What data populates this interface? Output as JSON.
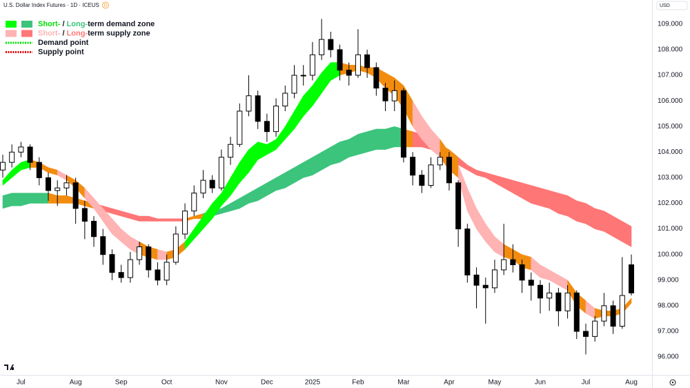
{
  "header": {
    "title": "U.S. Dollar Index Futures · 1D · ICEUS",
    "badge": "D",
    "currency": "USD"
  },
  "chart_data": {
    "type": "candlestick",
    "categories": [
      null,
      null,
      "Jul",
      null,
      null,
      null,
      null,
      null,
      "Aug",
      null,
      null,
      null,
      null,
      "Sep",
      null,
      null,
      null,
      null,
      "Oct",
      null,
      null,
      null,
      null,
      null,
      "Nov",
      null,
      null,
      null,
      null,
      "Dec",
      null,
      null,
      null,
      null,
      "2025",
      null,
      null,
      null,
      null,
      "Feb",
      null,
      null,
      null,
      null,
      "Mar",
      null,
      null,
      null,
      null,
      "Apr",
      null,
      null,
      null,
      null,
      "May",
      null,
      null,
      null,
      null,
      "Jun",
      null,
      null,
      null,
      null,
      "Jul",
      null,
      null,
      null,
      null,
      "Aug"
    ],
    "open": [
      103.3,
      103.6,
      104.0,
      104.2,
      103.6,
      103.0,
      102.5,
      102.6,
      102.8,
      101.8,
      101.3,
      100.7,
      100.0,
      99.3,
      99.1,
      99.8,
      100.3,
      99.4,
      99.0,
      99.7,
      100.8,
      101.7,
      102.4,
      102.9,
      102.6,
      103.8,
      104.3,
      105.6,
      106.2,
      105.2,
      104.8,
      105.8,
      106.3,
      107.0,
      107.0,
      107.8,
      108.4,
      108.0,
      107.2,
      107.0,
      107.8,
      107.3,
      106.5,
      106.0,
      106.4,
      103.8,
      103.1,
      102.7,
      103.5,
      103.8,
      102.8,
      101.0,
      99.2,
      98.8,
      98.7,
      99.4,
      99.8,
      99.6,
      99.0,
      98.8,
      98.3,
      98.5,
      97.8,
      98.5,
      97.0,
      96.8,
      97.4,
      98.0,
      97.2,
      99.6
    ],
    "high": [
      103.9,
      104.3,
      104.4,
      104.3,
      103.8,
      103.2,
      102.9,
      103.1,
      103.0,
      102.1,
      101.5,
      101.0,
      100.2,
      99.6,
      100.1,
      100.5,
      100.4,
      99.7,
      100.0,
      101.1,
      102.0,
      102.7,
      103.3,
      103.1,
      104.1,
      104.6,
      105.9,
      107.0,
      106.4,
      105.5,
      106.1,
      106.6,
      107.4,
      107.4,
      108.3,
      109.2,
      108.7,
      108.2,
      107.5,
      108.8,
      108.0,
      107.5,
      106.7,
      106.8,
      106.5,
      104.0,
      103.3,
      103.8,
      104.0,
      104.0,
      102.9,
      101.2,
      99.5,
      99.1,
      99.8,
      101.2,
      100.4,
      99.8,
      99.3,
      99.0,
      98.9,
      98.7,
      98.8,
      98.6,
      97.3,
      97.6,
      98.5,
      98.2,
      99.9,
      100.0
    ],
    "low": [
      103.0,
      103.4,
      103.8,
      103.3,
      102.7,
      102.1,
      101.9,
      102.3,
      101.2,
      100.6,
      100.3,
      99.6,
      99.0,
      98.9,
      98.9,
      99.6,
      99.1,
      98.8,
      98.8,
      99.6,
      100.6,
      101.5,
      102.2,
      102.4,
      102.5,
      103.5,
      104.2,
      105.4,
      104.9,
      104.4,
      104.6,
      105.6,
      106.1,
      106.6,
      106.8,
      107.6,
      107.7,
      106.8,
      106.6,
      106.9,
      106.9,
      106.2,
      105.6,
      105.6,
      103.6,
      102.7,
      102.4,
      102.6,
      103.3,
      102.5,
      100.3,
      98.9,
      97.9,
      97.3,
      98.5,
      99.2,
      99.3,
      98.5,
      98.2,
      97.7,
      97.8,
      97.2,
      97.5,
      96.7,
      96.1,
      96.6,
      97.2,
      96.9,
      97.1,
      98.4
    ],
    "close": [
      103.6,
      104.0,
      104.2,
      103.6,
      103.0,
      102.5,
      102.6,
      102.8,
      101.8,
      101.3,
      100.7,
      100.0,
      99.3,
      99.1,
      99.8,
      100.3,
      99.4,
      99.0,
      99.7,
      100.8,
      101.7,
      102.4,
      102.9,
      102.6,
      103.8,
      104.3,
      105.6,
      106.2,
      105.2,
      104.8,
      105.8,
      106.3,
      107.0,
      107.0,
      107.8,
      108.4,
      108.0,
      107.2,
      107.0,
      107.8,
      107.3,
      106.5,
      106.0,
      106.4,
      103.8,
      103.1,
      102.7,
      103.5,
      103.8,
      102.8,
      101.0,
      99.2,
      98.8,
      98.7,
      99.4,
      99.8,
      99.6,
      99.0,
      98.8,
      98.3,
      98.5,
      97.8,
      98.5,
      97.0,
      96.8,
      97.4,
      98.0,
      97.2,
      98.4,
      98.5
    ],
    "up_color": "#ffffff",
    "down_color": "#000000",
    "wick_color": "#000000",
    "zones": [
      {
        "upper": [
          102.3,
          102.4,
          102.4,
          102.4,
          102.4,
          102.4,
          102.3,
          102.3,
          102.2,
          102.1,
          102.0,
          101.9,
          101.8,
          101.7,
          101.6,
          101.5,
          101.5,
          101.4,
          101.4,
          101.4,
          101.4,
          101.5,
          101.6,
          101.7,
          101.8,
          102.0,
          102.2,
          102.4,
          102.6,
          102.8,
          103.0,
          103.2,
          103.4,
          103.6,
          103.8,
          104.0,
          104.2,
          104.4,
          104.5,
          104.7,
          104.8,
          104.9,
          104.9,
          105.0,
          104.9,
          104.8,
          104.7,
          104.5,
          104.3,
          104.1,
          103.8,
          103.5,
          103.3,
          103.2,
          103.1,
          103.0,
          102.9,
          102.8,
          102.7,
          102.6,
          102.5,
          102.4,
          102.3,
          102.1,
          102.0,
          101.8,
          101.7,
          101.5,
          101.3,
          101.1
        ],
        "lower": [
          101.8,
          101.9,
          101.9,
          102.0,
          102.0,
          102.0,
          102.0,
          102.0,
          102.0,
          101.9,
          101.8,
          101.7,
          101.6,
          101.5,
          101.4,
          101.3,
          101.3,
          101.3,
          101.3,
          101.3,
          101.3,
          101.4,
          101.4,
          101.5,
          101.6,
          101.7,
          101.8,
          102.0,
          102.1,
          102.3,
          102.5,
          102.6,
          102.8,
          103.0,
          103.1,
          103.3,
          103.5,
          103.6,
          103.8,
          103.9,
          104.0,
          104.1,
          104.1,
          104.2,
          104.2,
          104.2,
          104.2,
          104.1,
          103.9,
          103.7,
          103.5,
          103.3,
          103.1,
          103.0,
          102.8,
          102.6,
          102.4,
          102.2,
          102.0,
          101.9,
          101.8,
          101.6,
          101.5,
          101.3,
          101.2,
          101.0,
          100.9,
          100.7,
          100.5,
          100.3
        ],
        "demand_color": "#3cc47c",
        "supply_color": "#ff7676",
        "neutral_color": "#f28c0f"
      },
      {
        "upper": [
          102.9,
          103.3,
          103.6,
          103.7,
          103.6,
          103.4,
          103.3,
          103.1,
          102.9,
          102.6,
          102.2,
          101.8,
          101.4,
          101.0,
          100.7,
          100.5,
          100.3,
          100.2,
          100.1,
          100.2,
          100.5,
          101.0,
          101.5,
          102.0,
          102.4,
          103.0,
          103.6,
          104.1,
          104.4,
          104.3,
          104.5,
          105.0,
          105.6,
          106.2,
          106.6,
          107.1,
          107.5,
          107.5,
          107.4,
          107.4,
          107.3,
          107.3,
          107.1,
          106.9,
          106.6,
          106.0,
          105.4,
          104.9,
          104.5,
          104.0,
          103.5,
          102.6,
          101.8,
          101.2,
          100.7,
          100.4,
          100.2,
          100.0,
          99.9,
          99.6,
          99.4,
          99.2,
          99.0,
          98.5,
          98.2,
          97.9,
          97.8,
          97.8,
          97.9,
          98.3
        ],
        "lower": [
          102.7,
          103.0,
          103.3,
          103.4,
          103.4,
          103.2,
          103.1,
          102.9,
          102.6,
          102.2,
          101.8,
          101.3,
          100.8,
          100.5,
          100.2,
          100.0,
          99.9,
          99.8,
          99.8,
          99.9,
          100.2,
          100.6,
          101.0,
          101.4,
          101.9,
          102.3,
          102.8,
          103.2,
          103.7,
          103.9,
          104.1,
          104.5,
          104.9,
          105.4,
          105.8,
          106.3,
          106.8,
          107.0,
          107.1,
          107.2,
          107.1,
          106.9,
          106.5,
          106.2,
          105.7,
          105.0,
          104.5,
          104.1,
          103.8,
          103.3,
          103.0,
          101.7,
          101.0,
          100.5,
          100.1,
          99.9,
          99.8,
          99.5,
          99.4,
          99.1,
          99.0,
          98.8,
          98.6,
          98.0,
          97.7,
          97.5,
          97.6,
          97.6,
          97.7,
          98.1
        ],
        "demand_color": "#00ff00",
        "supply_color": "#ffb3b3",
        "neutral_color": "#f28c0f"
      }
    ],
    "ylim": [
      95.3,
      109.94
    ],
    "yticks": [
      {
        "value": 96,
        "label": "96.000"
      },
      {
        "value": 97,
        "label": "97.000"
      },
      {
        "value": 98,
        "label": "98.000"
      },
      {
        "value": 99,
        "label": "99.000"
      },
      {
        "value": 100,
        "label": "100.000"
      },
      {
        "value": 101,
        "label": "101.000"
      },
      {
        "value": 102,
        "label": "102.000"
      },
      {
        "value": 103,
        "label": "103.000"
      },
      {
        "value": 104,
        "label": "104.000"
      },
      {
        "value": 105,
        "label": "105.000"
      },
      {
        "value": 106,
        "label": "106.000"
      },
      {
        "value": 107,
        "label": "107.000"
      },
      {
        "value": 108,
        "label": "108.000"
      },
      {
        "value": 109,
        "label": "109.000"
      }
    ],
    "grid": false,
    "legend_position": "top-left",
    "legend": [
      {
        "parts": [
          {
            "text": "Short-",
            "color": "#00e000"
          },
          {
            "text": " / "
          },
          {
            "text": "Long-",
            "color": "#3cc47c"
          },
          {
            "text": "term demand zone"
          }
        ],
        "swatches": [
          "#00ff00",
          "#3cc47c"
        ]
      },
      {
        "parts": [
          {
            "text": "Short-",
            "color": "#ffb3b3"
          },
          {
            "text": " / "
          },
          {
            "text": "Long-",
            "color": "#ff7676"
          },
          {
            "text": "term supply zone"
          }
        ],
        "swatches": [
          "#ffb3b3",
          "#ff7676"
        ]
      },
      {
        "parts": [
          {
            "text": "Demand point"
          }
        ],
        "line": "#00e000"
      },
      {
        "parts": [
          {
            "text": "Supply point"
          }
        ],
        "line": "#e00000"
      }
    ]
  }
}
